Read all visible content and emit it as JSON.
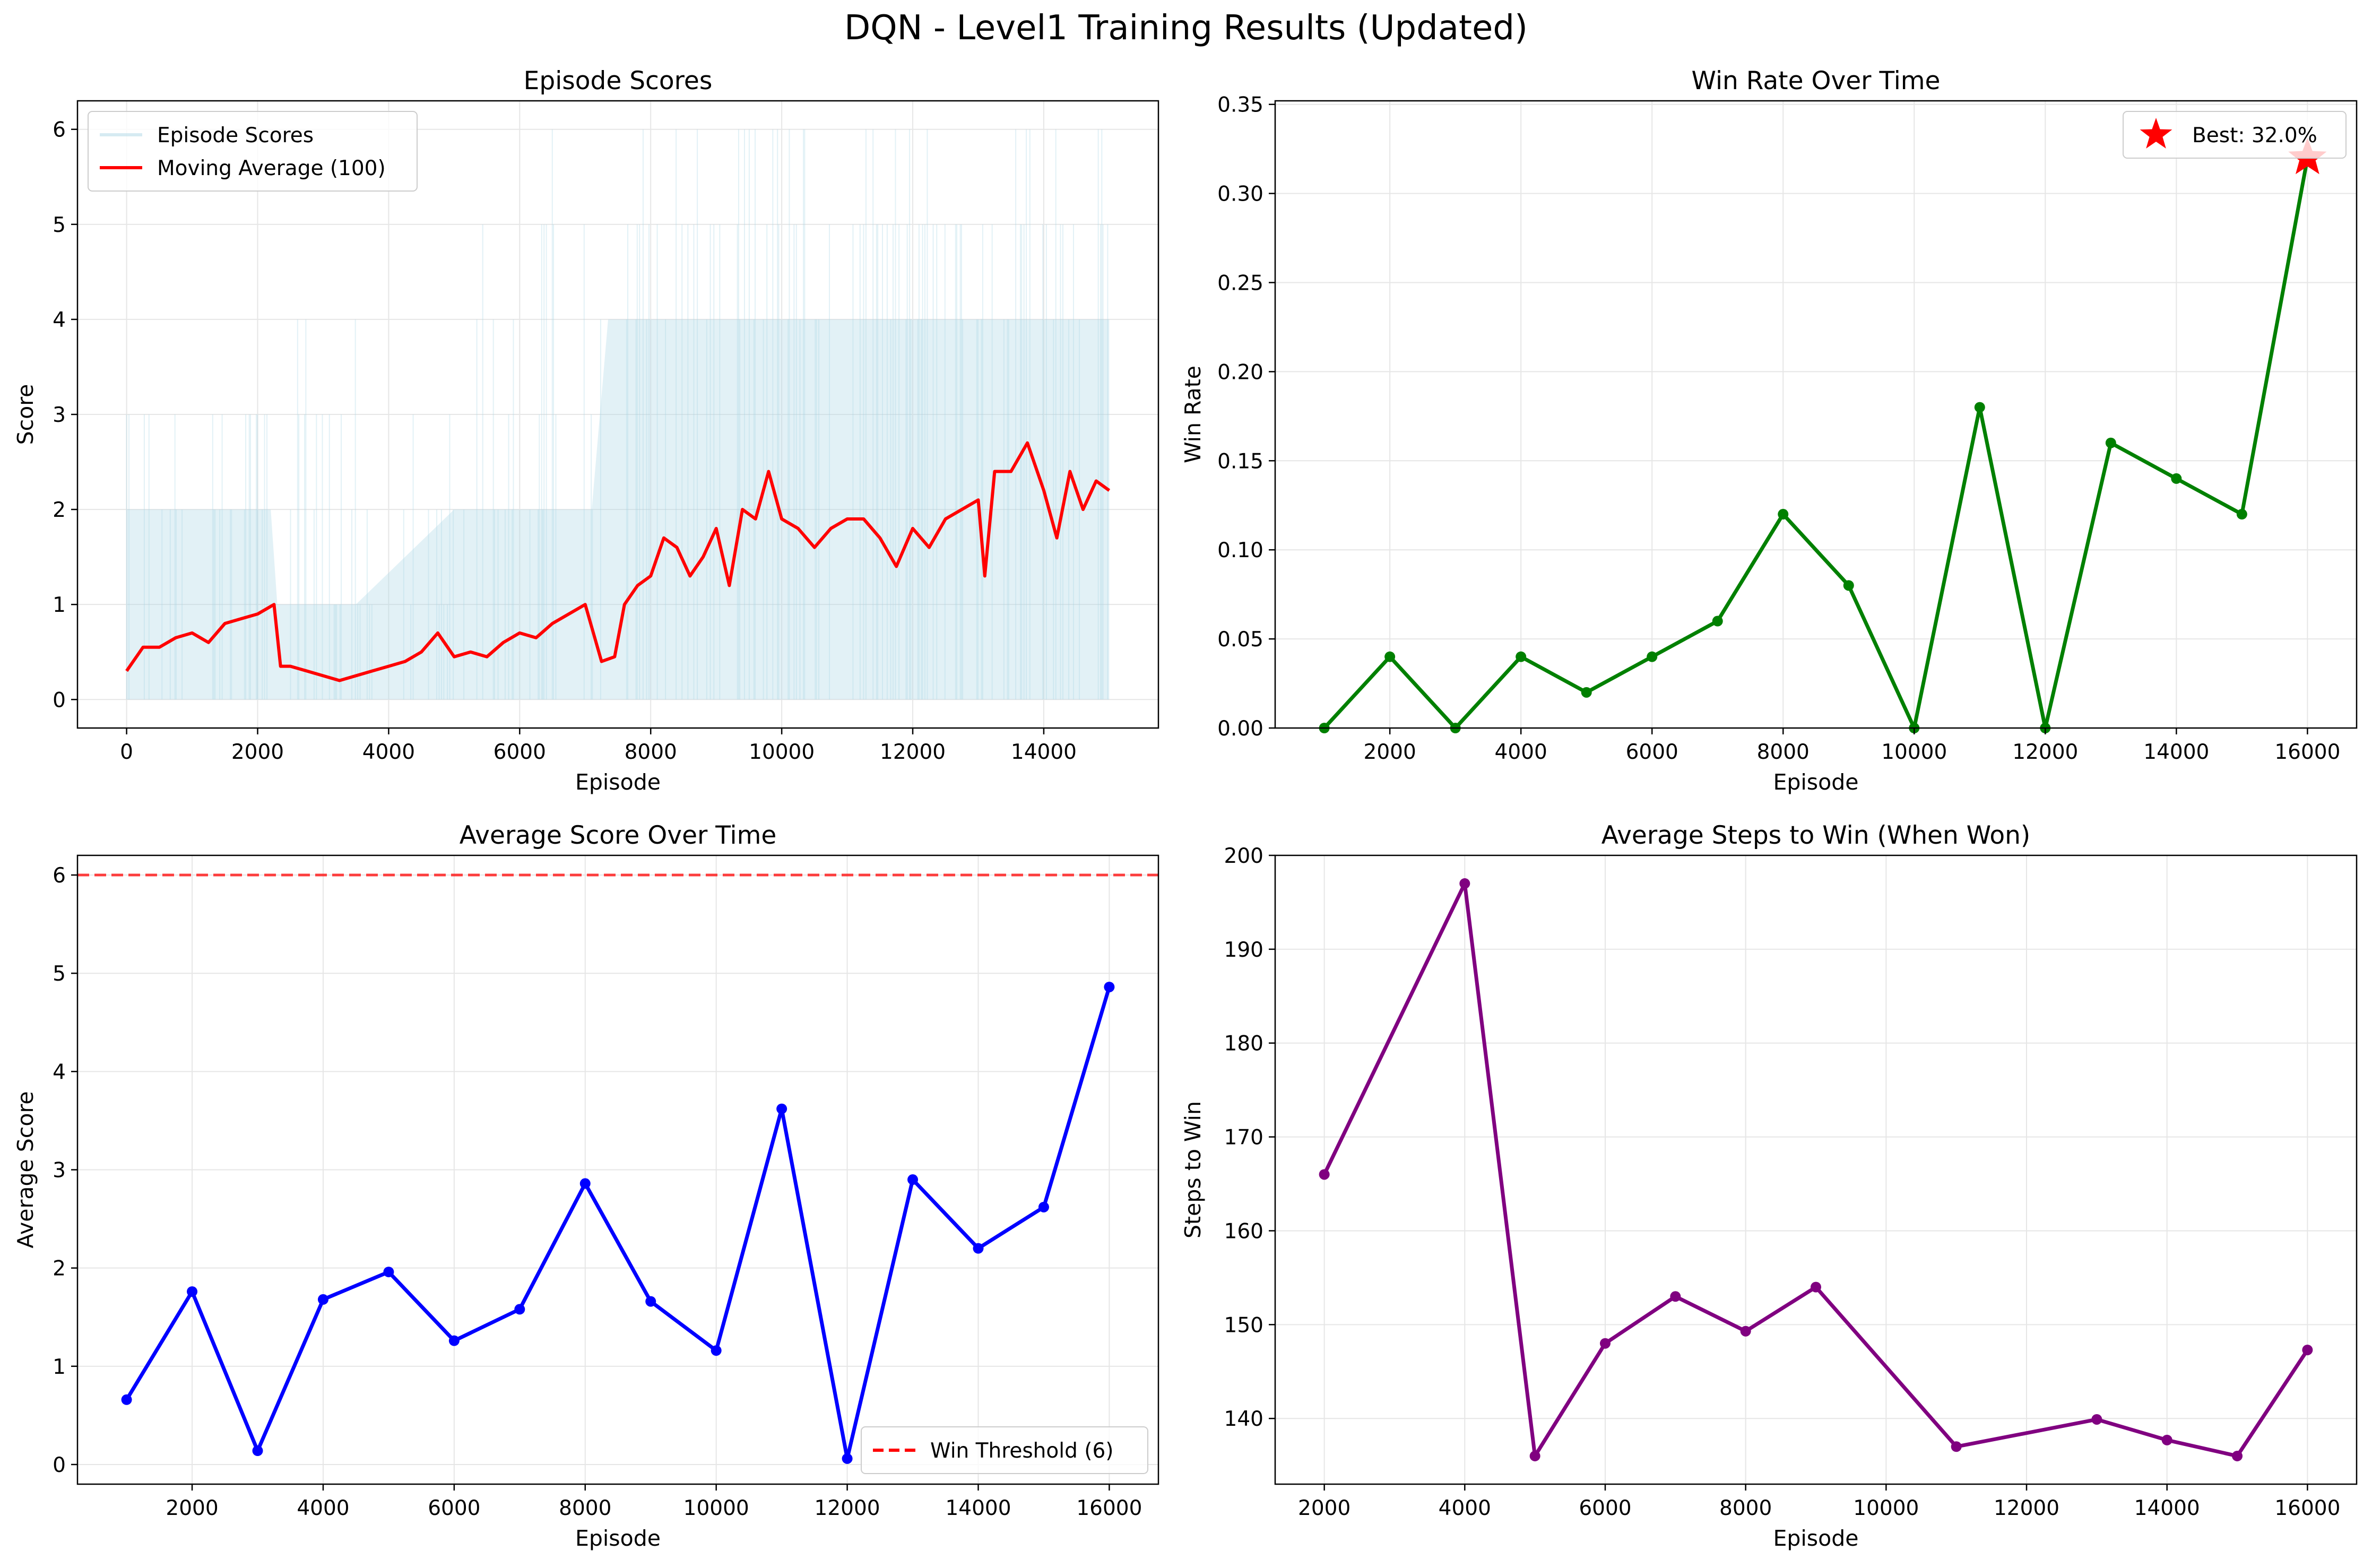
{
  "figure_title": "DQN - Level1 Training Results (Updated)",
  "chart_data": [
    {
      "type": "line",
      "title": "Episode Scores",
      "xlabel": "Episode",
      "ylabel": "Score",
      "xlim": [
        -750,
        15750
      ],
      "ylim": [
        -0.3,
        6.3
      ],
      "xticks": [
        0,
        2000,
        4000,
        6000,
        8000,
        10000,
        12000,
        14000
      ],
      "yticks": [
        0,
        1,
        2,
        3,
        4,
        5,
        6
      ],
      "grid": true,
      "legend": "top-left",
      "series": [
        {
          "name": "Episode Scores",
          "color": "#add8e6",
          "band_x": [
            0,
            2200,
            2300,
            2800,
            3500,
            5000,
            6000,
            7100,
            7350,
            9000,
            11000,
            13000,
            15000
          ],
          "band_typical_max": [
            2,
            2,
            1,
            1,
            1,
            2,
            2,
            2,
            4,
            4,
            4,
            4,
            4
          ],
          "band_max": [
            3,
            5,
            5,
            4,
            3,
            5,
            6,
            6,
            6,
            6,
            6,
            6,
            6
          ]
        },
        {
          "name": "Moving Average (100)",
          "color": "#ff0000",
          "x": [
            0,
            250,
            500,
            750,
            1000,
            1250,
            1500,
            1750,
            2000,
            2250,
            2350,
            2500,
            2750,
            3000,
            3250,
            3500,
            3750,
            4000,
            4250,
            4500,
            4750,
            5000,
            5250,
            5500,
            5750,
            6000,
            6250,
            6500,
            6750,
            7000,
            7250,
            7450,
            7600,
            7800,
            8000,
            8200,
            8400,
            8600,
            8800,
            9000,
            9200,
            9400,
            9600,
            9800,
            10000,
            10250,
            10500,
            10750,
            11000,
            11250,
            11500,
            11750,
            12000,
            12250,
            12500,
            12750,
            13000,
            13100,
            13250,
            13500,
            13750,
            14000,
            14200,
            14400,
            14600,
            14800,
            15000
          ],
          "y": [
            0.3,
            0.55,
            0.55,
            0.65,
            0.7,
            0.6,
            0.8,
            0.85,
            0.9,
            1.0,
            0.35,
            0.35,
            0.3,
            0.25,
            0.2,
            0.25,
            0.3,
            0.35,
            0.4,
            0.5,
            0.7,
            0.45,
            0.5,
            0.45,
            0.6,
            0.7,
            0.65,
            0.8,
            0.9,
            1.0,
            0.4,
            0.45,
            1.0,
            1.2,
            1.3,
            1.7,
            1.6,
            1.3,
            1.5,
            1.8,
            1.2,
            2.0,
            1.9,
            2.4,
            1.9,
            1.8,
            1.6,
            1.8,
            1.9,
            1.9,
            1.7,
            1.4,
            1.8,
            1.6,
            1.9,
            2.0,
            2.1,
            1.3,
            2.4,
            2.4,
            2.7,
            2.2,
            1.7,
            2.4,
            2.0,
            2.3,
            2.2
          ]
        }
      ]
    },
    {
      "type": "line",
      "title": "Win Rate Over Time",
      "xlabel": "Episode",
      "ylabel": "Win Rate",
      "xlim": [
        250,
        16750
      ],
      "ylim": [
        0.0,
        0.352
      ],
      "xticks": [
        2000,
        4000,
        6000,
        8000,
        10000,
        12000,
        14000,
        16000
      ],
      "yticks": [
        "0.00",
        "0.05",
        "0.10",
        "0.15",
        "0.20",
        "0.25",
        "0.30",
        "0.35"
      ],
      "grid": true,
      "legend": "top-right",
      "series": [
        {
          "color": "#008000",
          "x": [
            1000,
            2000,
            3000,
            4000,
            5000,
            6000,
            7000,
            8000,
            9000,
            10000,
            11000,
            12000,
            13000,
            14000,
            15000,
            16000
          ],
          "y": [
            0.0,
            0.04,
            0.0,
            0.04,
            0.02,
            0.04,
            0.06,
            0.12,
            0.08,
            0.0,
            0.18,
            0.0,
            0.16,
            0.14,
            0.12,
            0.32
          ]
        },
        {
          "name": "Best: 32.0%",
          "color": "#ff0000",
          "marker": "star",
          "x": [
            16000
          ],
          "y": [
            0.32
          ]
        }
      ]
    },
    {
      "type": "line",
      "title": "Average Score Over Time",
      "xlabel": "Episode",
      "ylabel": "Average Score",
      "xlim": [
        250,
        16750
      ],
      "ylim": [
        -0.2,
        6.2
      ],
      "xticks": [
        2000,
        4000,
        6000,
        8000,
        10000,
        12000,
        14000,
        16000
      ],
      "yticks": [
        0,
        1,
        2,
        3,
        4,
        5,
        6
      ],
      "grid": true,
      "legend": "bottom-right",
      "series": [
        {
          "color": "#0000ff",
          "x": [
            1000,
            2000,
            3000,
            4000,
            5000,
            6000,
            7000,
            8000,
            9000,
            10000,
            11000,
            12000,
            13000,
            14000,
            15000,
            16000
          ],
          "y": [
            0.66,
            1.76,
            0.14,
            1.68,
            1.96,
            1.26,
            1.58,
            2.86,
            1.66,
            1.16,
            3.62,
            0.06,
            2.9,
            2.2,
            2.62,
            4.86
          ]
        },
        {
          "name": "Win Threshold (6)",
          "color": "#ff0000",
          "style": "dashed",
          "y": 6
        }
      ]
    },
    {
      "type": "line",
      "title": "Average Steps to Win (When Won)",
      "xlabel": "Episode",
      "ylabel": "Steps to Win",
      "xlim": [
        1300,
        16700
      ],
      "ylim": [
        133.0,
        200.0
      ],
      "xticks": [
        2000,
        4000,
        6000,
        8000,
        10000,
        12000,
        14000,
        16000
      ],
      "yticks": [
        140,
        150,
        160,
        170,
        180,
        190,
        200
      ],
      "grid": true,
      "series": [
        {
          "color": "#800080",
          "x": [
            2000,
            4000,
            5000,
            6000,
            7000,
            8000,
            9000,
            11000,
            13000,
            14000,
            15000,
            16000
          ],
          "y": [
            166,
            197,
            136,
            148,
            153,
            149.3,
            154,
            137,
            139.9,
            137.7,
            136,
            147.3
          ]
        }
      ]
    }
  ]
}
